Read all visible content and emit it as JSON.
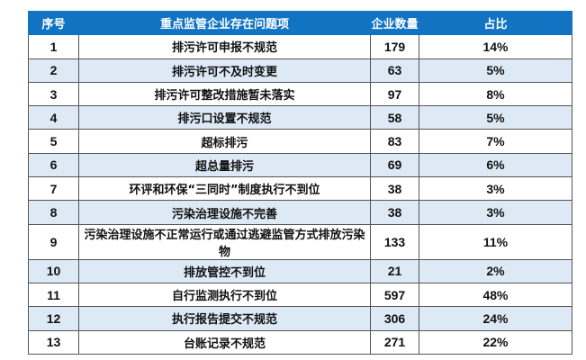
{
  "headers": [
    "序号",
    "重点监管企业存在问题项",
    "企业数量",
    "占比"
  ],
  "rows": [
    {
      "no": "1",
      "issue": "排污许可申报不规范",
      "count": "179",
      "pct": "14%"
    },
    {
      "no": "2",
      "issue": "排污许可不及时变更",
      "count": "63",
      "pct": "5%"
    },
    {
      "no": "3",
      "issue": "排污许可整改措施暂未落实",
      "count": "97",
      "pct": "8%"
    },
    {
      "no": "4",
      "issue": "排污口设置不规范",
      "count": "58",
      "pct": "5%"
    },
    {
      "no": "5",
      "issue": "超标排污",
      "count": "83",
      "pct": "7%"
    },
    {
      "no": "6",
      "issue": "超总量排污",
      "count": "69",
      "pct": "6%"
    },
    {
      "no": "7",
      "issue": "环评和环保“三同时”制度执行不到位",
      "count": "38",
      "pct": "3%"
    },
    {
      "no": "8",
      "issue": "污染治理设施不完善",
      "count": "38",
      "pct": "3%"
    },
    {
      "no": "9",
      "issue": "污染治理设施不正常运行或通过逃避监管方式排放污染物",
      "count": "133",
      "pct": "11%"
    },
    {
      "no": "10",
      "issue": "排放管控不到位",
      "count": "21",
      "pct": "2%"
    },
    {
      "no": "11",
      "issue": "自行监测执行不到位",
      "count": "597",
      "pct": "48%"
    },
    {
      "no": "12",
      "issue": "执行报告提交不规范",
      "count": "306",
      "pct": "24%"
    },
    {
      "no": "13",
      "issue": "台账记录不规范",
      "count": "271",
      "pct": "22%"
    }
  ],
  "colors": {
    "header_bg": "#1173c1",
    "alt_row_bg": "#dde9f5"
  }
}
